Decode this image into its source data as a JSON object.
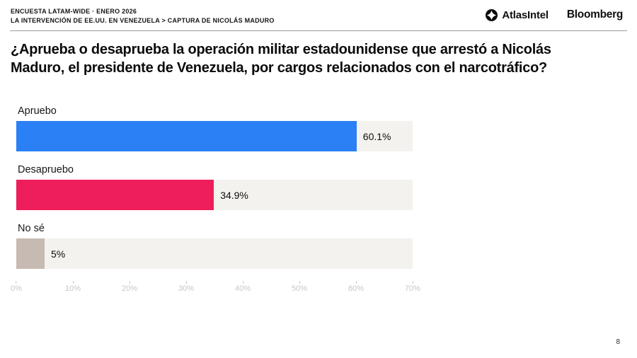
{
  "header": {
    "kicker_line1": "ENCUESTA LATAM-WIDE · ENERO 2026",
    "kicker_line2": "LA INTERVENCIÓN DE EE.UU. EN VENEZUELA > CAPTURA DE NICOLÁS MADURO",
    "logos": {
      "atlasintel": "AtlasIntel",
      "bloomberg": "Bloomberg"
    }
  },
  "question_title": "¿Aprueba o desaprueba la operación militar estadounidense que arrestó a Nicolás Maduro, el presidente de Venezuela, por cargos relacionados con el narcotráfico?",
  "chart_data": {
    "type": "bar",
    "orientation": "horizontal",
    "categories": [
      "Apruebo",
      "Desapruebo",
      "No sé"
    ],
    "values": [
      60.1,
      34.9,
      5
    ],
    "value_labels": [
      "60.1%",
      "34.9%",
      "5%"
    ],
    "bar_colors": [
      "#2b80f5",
      "#ee1e5a",
      "#c7bab2"
    ],
    "track_color": "#f3f2ee",
    "xlim": [
      0,
      70
    ],
    "x_tick_labels": [
      "0%",
      "10%",
      "20%",
      "30%",
      "40%",
      "50%",
      "60%",
      "70%"
    ],
    "xlabel": "",
    "ylabel": "",
    "grid": false,
    "legend": "none"
  },
  "footer": {
    "page_number": "8"
  }
}
